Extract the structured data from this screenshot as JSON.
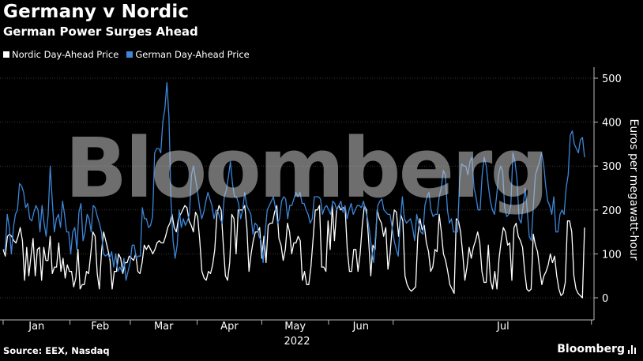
{
  "header": {
    "title": "Germany v Nordic",
    "subtitle": "German Power Surges Ahead"
  },
  "legend": [
    {
      "label": "Nordic Day-Ahead Price",
      "color": "#ffffff"
    },
    {
      "label": "German Day-Ahead Price",
      "color": "#3d86d8"
    }
  ],
  "footer": {
    "source": "Source: EEX, Nasdaq",
    "brand": "Bloomberg"
  },
  "watermark": "Bloomberg",
  "chart_data": {
    "type": "line",
    "title": "Germany v Nordic",
    "subtitle": "German Power Surges Ahead",
    "xlabel": "2022",
    "ylabel": "Euros per megawatt-hour",
    "ylim": [
      -50,
      520
    ],
    "yticks": [
      0,
      100,
      200,
      300,
      400,
      500
    ],
    "xticks": [
      "Jan",
      "Feb",
      "Mar",
      "Apr",
      "May",
      "Jun",
      "Jul"
    ],
    "x_period": "2022-01-01 to 2022-07-12 (daily)",
    "grid": true,
    "legend_position": "top-left",
    "series": [
      {
        "name": "Nordic Day-Ahead Price",
        "color": "#ffffff",
        "values": [
          110,
          95,
          140,
          145,
          140,
          130,
          125,
          140,
          160,
          130,
          40,
          115,
          50,
          95,
          135,
          50,
          110,
          115,
          40,
          115,
          85,
          85,
          140,
          55,
          70,
          70,
          125,
          60,
          90,
          45,
          75,
          60,
          60,
          25,
          45,
          110,
          20,
          30,
          30,
          60,
          55,
          100,
          150,
          140,
          55,
          20,
          105,
          150,
          130,
          110,
          85,
          20,
          60,
          60,
          100,
          90,
          55,
          80,
          80,
          95,
          90,
          85,
          100,
          60,
          55,
          80,
          120,
          110,
          120,
          110,
          100,
          110,
          125,
          130,
          125,
          125,
          140,
          160,
          170,
          190,
          160,
          150,
          180,
          190,
          200,
          210,
          205,
          175,
          165,
          150,
          195,
          185,
          130,
          60,
          45,
          40,
          60,
          55,
          75,
          110,
          190,
          210,
          200,
          120,
          50,
          40,
          80,
          190,
          180,
          100,
          200,
          200,
          200,
          210,
          160,
          60,
          100,
          130,
          150,
          150,
          160,
          90,
          140,
          80,
          165,
          170,
          170,
          195,
          210,
          135,
          120,
          85,
          110,
          170,
          150,
          100,
          125,
          125,
          140,
          130,
          40,
          60,
          30,
          30,
          70,
          135,
          200,
          200,
          210,
          70,
          70,
          60,
          175,
          110,
          210,
          130,
          200,
          210,
          200,
          205,
          205,
          110,
          60,
          60,
          110,
          110,
          60,
          100,
          165,
          210,
          200,
          130,
          50,
          120,
          110,
          200,
          180,
          170,
          140,
          160,
          65,
          100,
          160,
          200,
          195,
          140,
          190,
          175,
          50,
          30,
          20,
          15,
          20,
          25,
          140,
          180,
          155,
          165,
          125,
          105,
          60,
          70,
          110,
          105,
          190,
          150,
          100,
          85,
          60,
          30,
          20,
          10,
          180,
          175,
          150,
          100,
          40,
          70,
          115,
          90,
          115,
          130,
          150,
          125,
          60,
          35,
          35,
          120,
          40,
          20,
          60,
          20,
          90,
          130,
          160,
          150,
          120,
          125,
          40,
          160,
          170,
          140,
          130,
          115,
          60,
          20,
          15,
          20,
          145,
          120,
          105,
          65,
          30,
          50,
          60,
          75,
          100,
          80,
          95,
          50,
          20,
          5,
          10,
          35,
          175,
          175,
          150,
          50,
          20,
          10,
          5,
          0,
          160
        ]
      },
      {
        "name": "German Day-Ahead Price",
        "color": "#3d86d8",
        "values": [
          110,
          110,
          190,
          160,
          100,
          160,
          190,
          200,
          260,
          255,
          240,
          205,
          215,
          180,
          175,
          195,
          210,
          200,
          150,
          210,
          170,
          140,
          190,
          300,
          220,
          150,
          180,
          190,
          160,
          220,
          190,
          150,
          150,
          100,
          150,
          160,
          110,
          195,
          215,
          130,
          150,
          190,
          180,
          150,
          210,
          205,
          185,
          170,
          150,
          100,
          95,
          100,
          90,
          105,
          70,
          100,
          60,
          70,
          60,
          90,
          40,
          60,
          80,
          120,
          120,
          90,
          95,
          95,
          205,
          180,
          180,
          160,
          165,
          185,
          330,
          340,
          340,
          330,
          400,
          430,
          490,
          410,
          220,
          130,
          90,
          120,
          200,
          160,
          180,
          165,
          175,
          190,
          280,
          300,
          270,
          240,
          205,
          180,
          195,
          220,
          240,
          225,
          210,
          180,
          200,
          195,
          180,
          170,
          230,
          245,
          275,
          310,
          260,
          230,
          230,
          215,
          180,
          200,
          240,
          210,
          200,
          190,
          145,
          170,
          165,
          140,
          130,
          80,
          150,
          200,
          210,
          220,
          230,
          205,
          170,
          180,
          220,
          230,
          225,
          180,
          210,
          210,
          225,
          240,
          230,
          240,
          215,
          215,
          200,
          190,
          170,
          180,
          230,
          230,
          230,
          225,
          190,
          205,
          210,
          200,
          190,
          220,
          215,
          200,
          210,
          220,
          195,
          210,
          180,
          200,
          215,
          190,
          200,
          210,
          210,
          205,
          220,
          200,
          180,
          150,
          110,
          80,
          150,
          210,
          220,
          225,
          200,
          195,
          190,
          190,
          160,
          130,
          110,
          95,
          175,
          230,
          180,
          170,
          175,
          180,
          160,
          130,
          190,
          170,
          150,
          145,
          210,
          230,
          240,
          200,
          185,
          190,
          190,
          230,
          250,
          290,
          280,
          200,
          170,
          180,
          150,
          150,
          150,
          270,
          305,
          300,
          300,
          280,
          310,
          320,
          250,
          230,
          200,
          200,
          280,
          320,
          300,
          255,
          220,
          200,
          190,
          230,
          280,
          300,
          290,
          205,
          185,
          190,
          210,
          330,
          310,
          270,
          180,
          170,
          210,
          250,
          200,
          140,
          130,
          210,
          280,
          295,
          310,
          330,
          305,
          255,
          220,
          210,
          190,
          230,
          150,
          150,
          190,
          200,
          190,
          250,
          280,
          370,
          380,
          350,
          340,
          330,
          360,
          365,
          320
        ]
      }
    ]
  }
}
